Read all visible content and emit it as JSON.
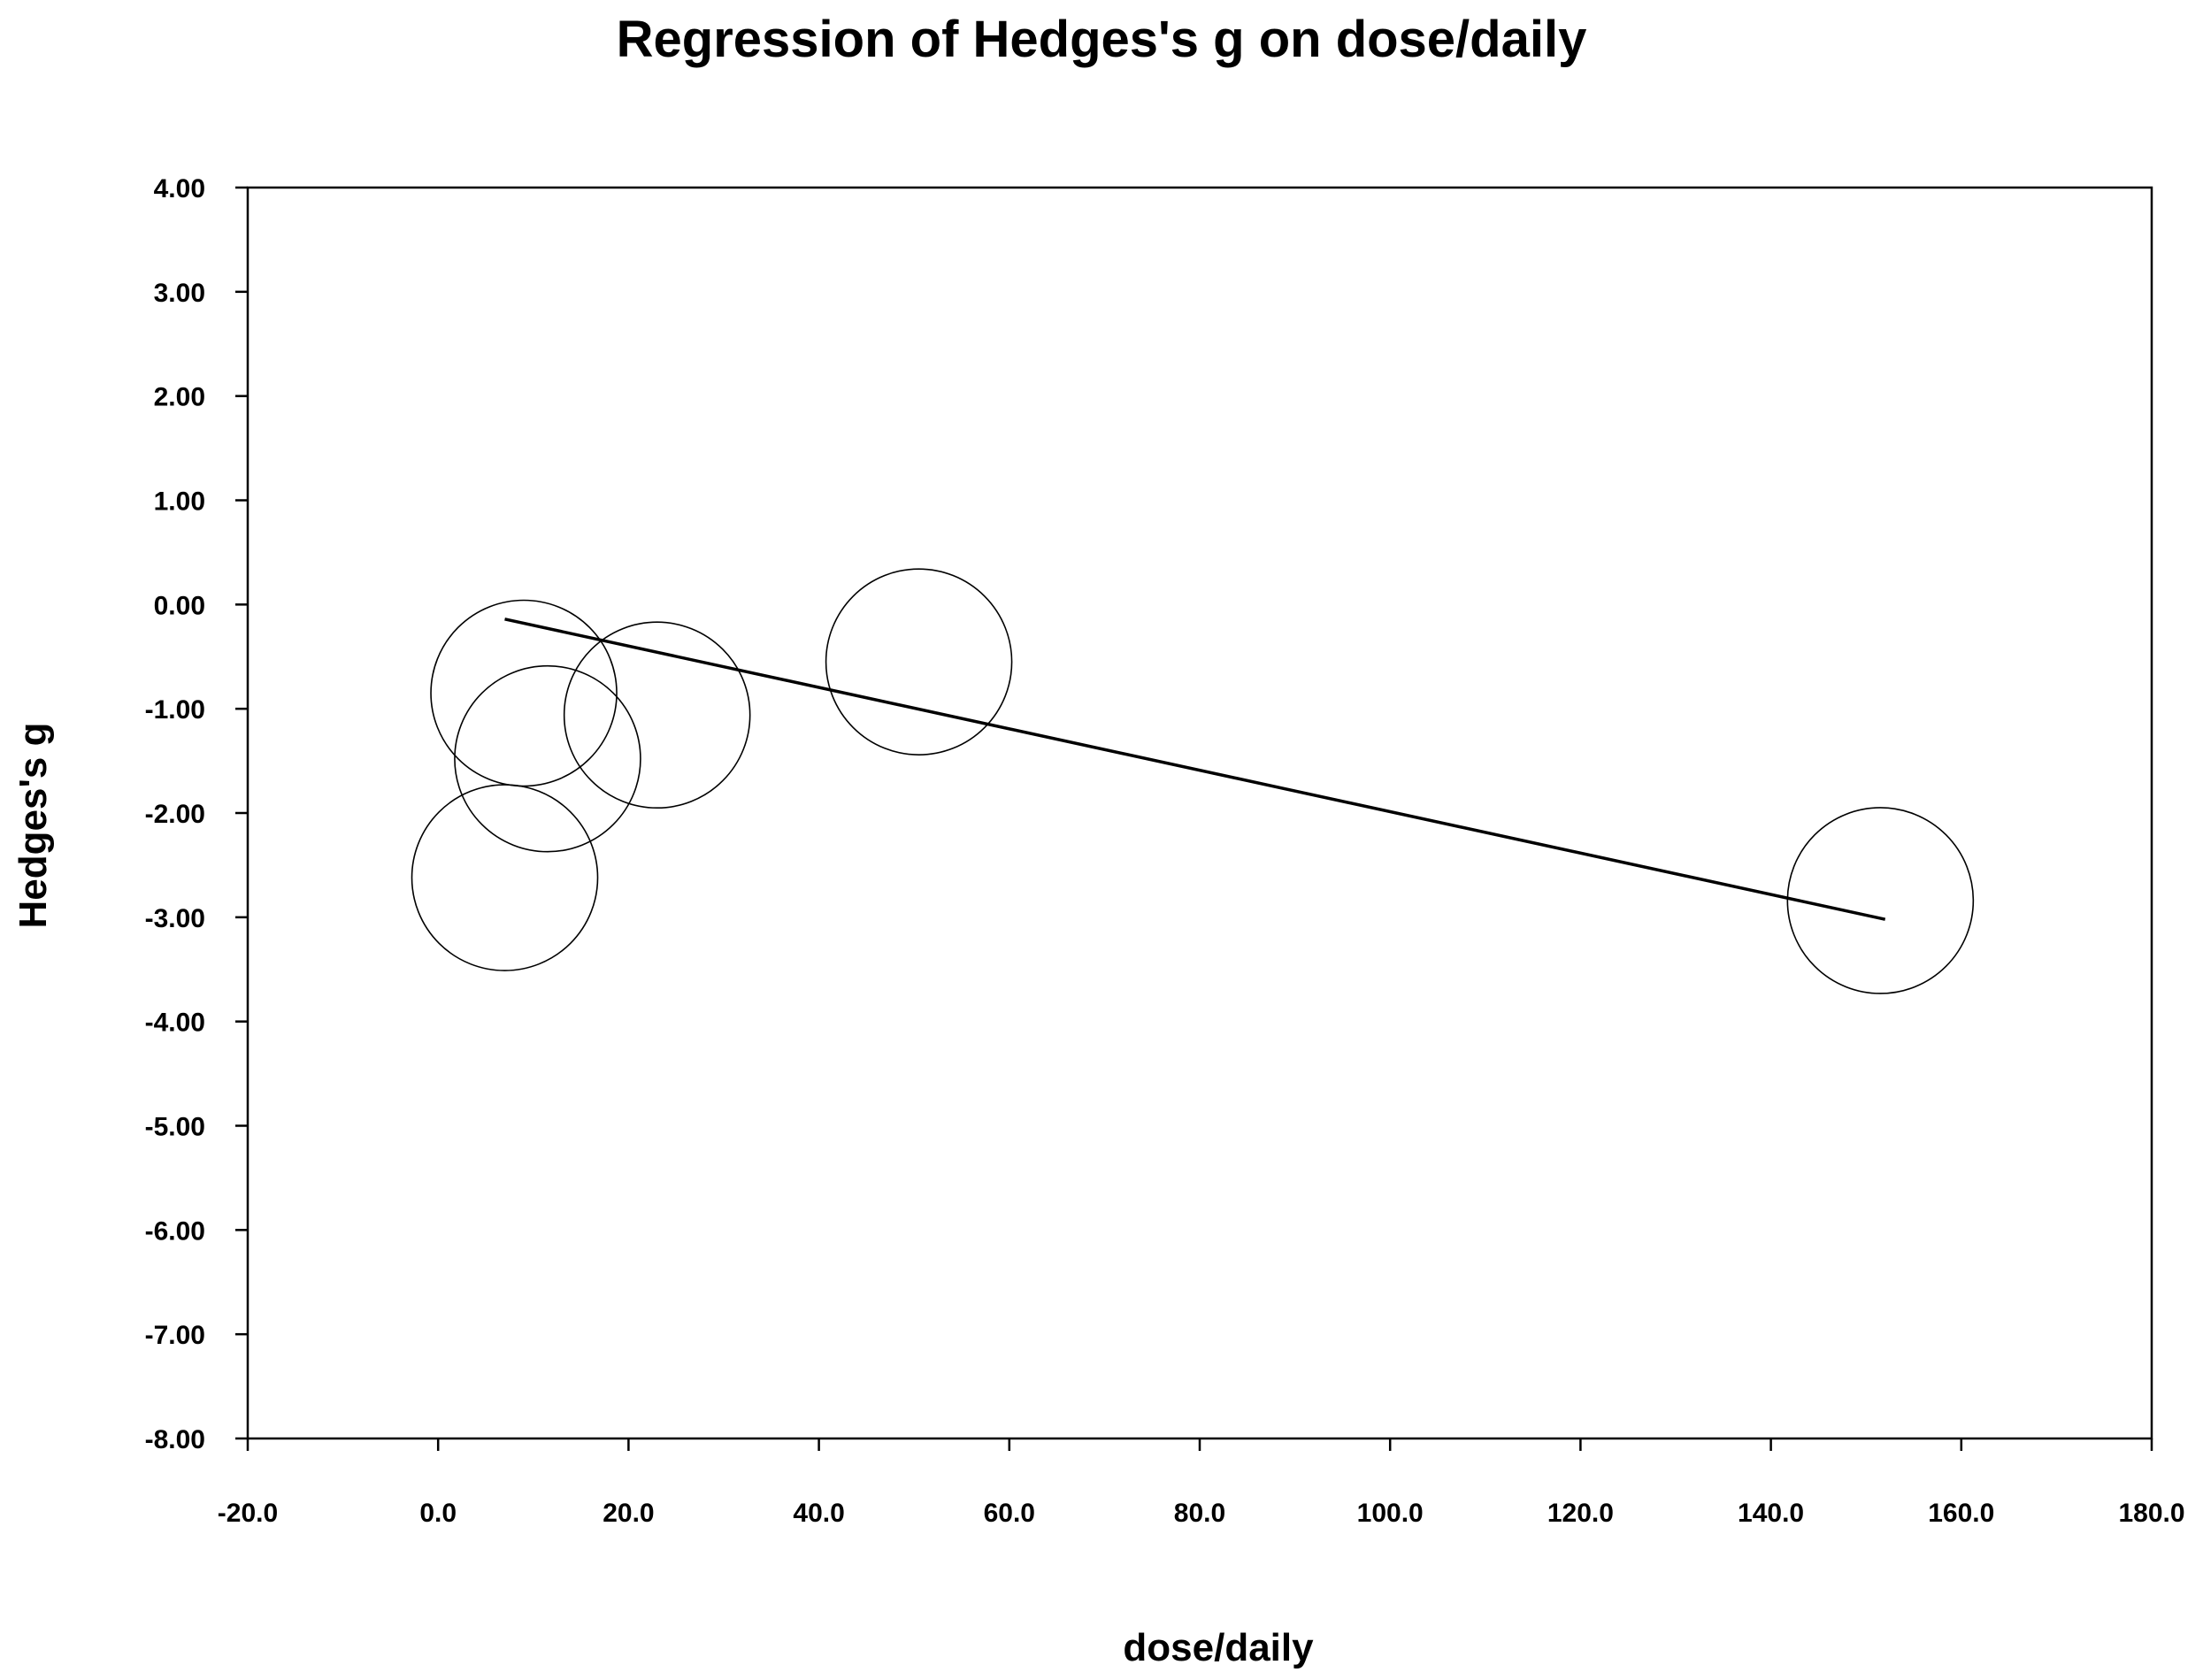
{
  "chart_data": {
    "type": "scatter",
    "title": "Regression of Hedges's g on dose/daily",
    "xlabel": "dose/daily",
    "ylabel": "Hedges's g",
    "xlim": [
      -20,
      180
    ],
    "ylim": [
      -8,
      4
    ],
    "x_ticks": [
      -20,
      0,
      20,
      40,
      60,
      80,
      100,
      120,
      140,
      160,
      180
    ],
    "y_ticks": [
      4,
      3,
      2,
      1,
      0,
      -1,
      -2,
      -3,
      -4,
      -5,
      -6,
      -7,
      -8
    ],
    "x_tick_labels": [
      "-20.0",
      "0.0",
      "20.0",
      "40.0",
      "60.0",
      "80.0",
      "100.0",
      "120.0",
      "140.0",
      "160.0",
      "180.0"
    ],
    "y_tick_labels": [
      "4.00",
      "3.00",
      "2.00",
      "1.00",
      "0.00",
      "-1.00",
      "-2.00",
      "-3.00",
      "-4.00",
      "-5.00",
      "-6.00",
      "-7.00",
      "-8.00"
    ],
    "grid": false,
    "legend": false,
    "points": [
      {
        "x": 9.0,
        "y": -0.85
      },
      {
        "x": 11.5,
        "y": -1.48
      },
      {
        "x": 7.0,
        "y": -2.62
      },
      {
        "x": 23.0,
        "y": -1.06
      },
      {
        "x": 50.5,
        "y": -0.55
      },
      {
        "x": 151.5,
        "y": -2.84
      }
    ],
    "regression_line": {
      "x": [
        7.0,
        152.0
      ],
      "y": [
        -0.14,
        -3.02
      ]
    },
    "marker": "open-circle",
    "line_color": "#000000"
  }
}
